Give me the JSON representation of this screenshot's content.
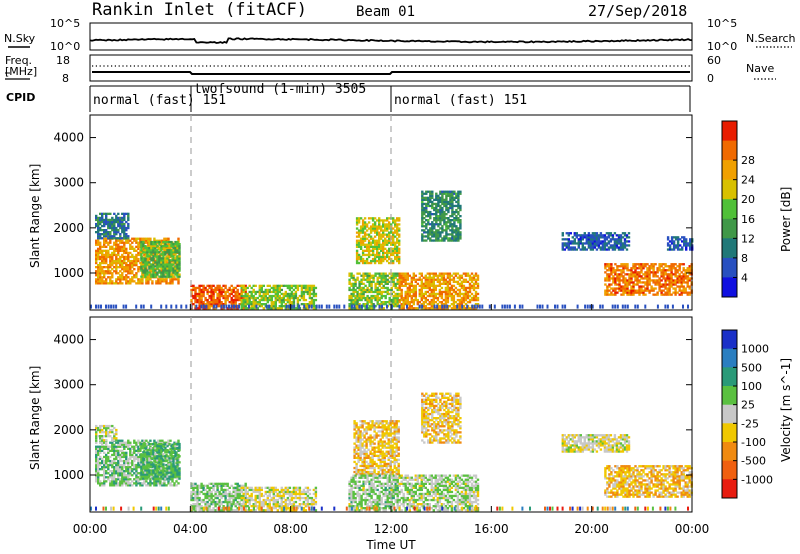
{
  "header": {
    "title": "Rankin Inlet (fitACF)",
    "beam": "Beam 01",
    "date": "27/Sep/2018"
  },
  "noise_panel": {
    "left_label": "N.Sky",
    "left_ticks": [
      "10^5",
      "10^0"
    ],
    "right_label": "N.Search",
    "right_ticks": [
      "10^5",
      "10^0"
    ]
  },
  "freq_panel": {
    "left_label_1": "Freq.",
    "left_label_2": "[MHz]",
    "left_ticks": [
      "18",
      "8"
    ],
    "right_label": "Nave",
    "right_ticks": [
      "60",
      "0"
    ]
  },
  "cpid_panel": {
    "label": "CPID",
    "segments": [
      {
        "text": "normal (fast) 151",
        "start_hour": 0,
        "end_hour": 4
      },
      {
        "text": "twofsound (1-min) 3505",
        "start_hour": 4,
        "end_hour": 12
      },
      {
        "text": "normal (fast) 151",
        "start_hour": 12,
        "end_hour": 24
      }
    ]
  },
  "x_axis": {
    "label": "Time UT",
    "ticks": [
      "00:00",
      "04:00",
      "08:00",
      "12:00",
      "16:00",
      "20:00",
      "00:00"
    ],
    "range_hours": [
      0,
      24
    ]
  },
  "chart_data": [
    {
      "type": "heatmap",
      "panel": "power",
      "ylabel": "Slant Range [km]",
      "y_ticks": [
        "1000",
        "2000",
        "3000",
        "4000"
      ],
      "ylim": [
        180,
        4500
      ],
      "colorbar_label": "Power [dB]",
      "colorbar_ticks": [
        "4",
        "8",
        "12",
        "16",
        "20",
        "24",
        "28"
      ],
      "colorbar_colors": [
        "#1010e0",
        "#2850c0",
        "#207878",
        "#409848",
        "#50c038",
        "#d8c000",
        "#f0a000",
        "#f06a00",
        "#e81c00"
      ],
      "clim": [
        0,
        30
      ],
      "echo_regions": [
        {
          "t0": 0.2,
          "t1": 3.5,
          "r0": 750,
          "r1": 1750,
          "value": 22
        },
        {
          "t0": 0.2,
          "t1": 1.5,
          "r0": 1750,
          "r1": 2300,
          "value": 8
        },
        {
          "t0": 2.0,
          "t1": 3.6,
          "r0": 900,
          "r1": 1700,
          "value": 14
        },
        {
          "t0": 4.0,
          "t1": 6.2,
          "r0": 200,
          "r1": 700,
          "value": 26
        },
        {
          "t0": 6.0,
          "t1": 9.0,
          "r0": 200,
          "r1": 700,
          "value": 16
        },
        {
          "t0": 10.6,
          "t1": 12.3,
          "r0": 1200,
          "r1": 2200,
          "value": 18
        },
        {
          "t0": 10.3,
          "t1": 12.3,
          "r0": 200,
          "r1": 1000,
          "value": 16
        },
        {
          "t0": 12.3,
          "t1": 15.5,
          "r0": 200,
          "r1": 1000,
          "value": 22
        },
        {
          "t0": 13.2,
          "t1": 14.8,
          "r0": 1700,
          "r1": 2800,
          "value": 10
        },
        {
          "t0": 18.8,
          "t1": 21.5,
          "r0": 1500,
          "r1": 1900,
          "value": 6
        },
        {
          "t0": 23.0,
          "t1": 24.0,
          "r0": 1500,
          "r1": 1800,
          "value": 6
        },
        {
          "t0": 20.5,
          "t1": 24.0,
          "r0": 500,
          "r1": 1200,
          "value": 24
        }
      ]
    },
    {
      "type": "heatmap",
      "panel": "velocity",
      "ylabel": "Slant Range [km]",
      "y_ticks": [
        "1000",
        "2000",
        "3000",
        "4000"
      ],
      "ylim": [
        180,
        4500
      ],
      "colorbar_label": "Velocity [m s^-1]",
      "colorbar_ticks": [
        "1000",
        "500",
        "100",
        "25",
        "-25",
        "-100",
        "-500",
        "-1000"
      ],
      "colorbar_colors": [
        "#1a30c8",
        "#2a7ec0",
        "#2a9a78",
        "#5ac040",
        "#c8c8c8",
        "#f0c800",
        "#f08a10",
        "#f06010",
        "#e81c10"
      ],
      "clim": [
        -1000,
        1000
      ],
      "echo_regions": [
        {
          "t0": 0.2,
          "t1": 3.5,
          "r0": 750,
          "r1": 1750,
          "value": 200
        },
        {
          "t0": 0.2,
          "t1": 1.0,
          "r0": 1750,
          "r1": 2100,
          "value": 0
        },
        {
          "t0": 2.0,
          "t1": 3.6,
          "r0": 900,
          "r1": 1700,
          "value": 300
        },
        {
          "t0": 4.0,
          "t1": 6.2,
          "r0": 200,
          "r1": 800,
          "value": 150
        },
        {
          "t0": 6.0,
          "t1": 9.0,
          "r0": 200,
          "r1": 700,
          "value": -60
        },
        {
          "t0": 10.5,
          "t1": 12.3,
          "r0": 1000,
          "r1": 2200,
          "value": -200
        },
        {
          "t0": 10.3,
          "t1": 12.3,
          "r0": 200,
          "r1": 1000,
          "value": 120
        },
        {
          "t0": 12.3,
          "t1": 15.5,
          "r0": 200,
          "r1": 1000,
          "value": 80
        },
        {
          "t0": 13.2,
          "t1": 14.8,
          "r0": 1700,
          "r1": 2800,
          "value": -180
        },
        {
          "t0": 18.8,
          "t1": 21.5,
          "r0": 1500,
          "r1": 1900,
          "value": -60
        },
        {
          "t0": 20.5,
          "t1": 24.0,
          "r0": 500,
          "r1": 1200,
          "value": -250
        }
      ]
    }
  ]
}
